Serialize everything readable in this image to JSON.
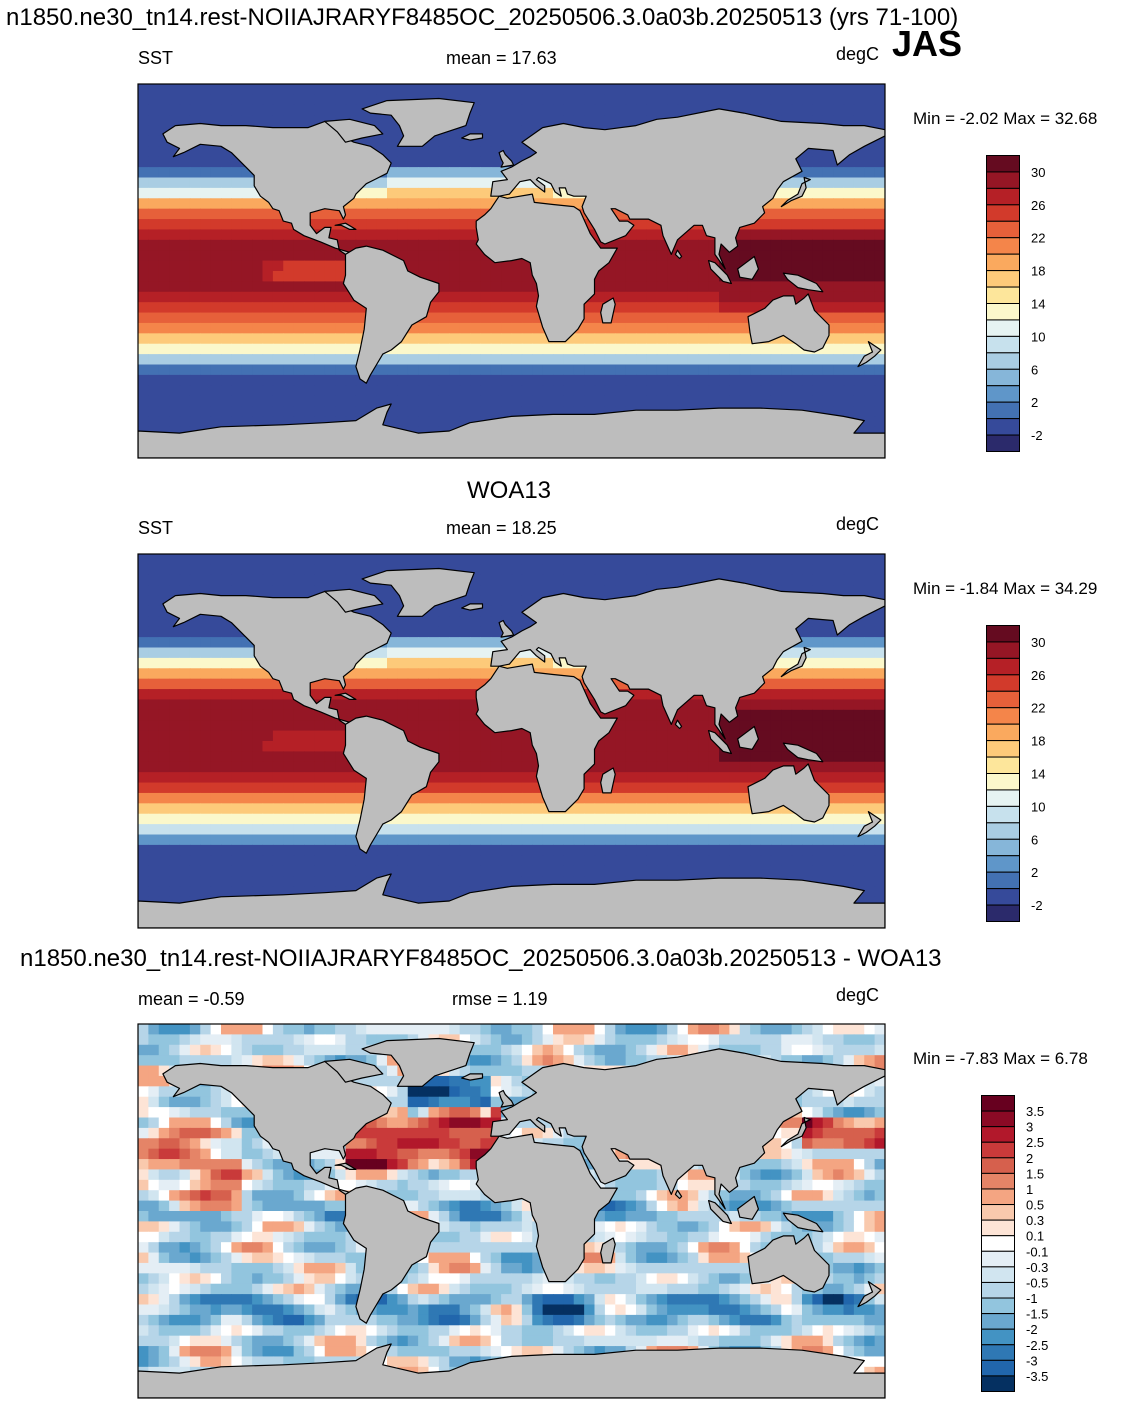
{
  "page": {
    "title": "n1850.ne30_tn14.rest-NOIIAJRARYF8485OC_20250506.3.0a03b.20250513 (yrs 71-100)",
    "season": "JAS"
  },
  "chart_data": [
    {
      "type": "heatmap",
      "title": "",
      "variable": "SST",
      "stat_text": "mean =  17.63",
      "mean": 17.63,
      "units": "degC",
      "minmax_text": "Min =  -2.02 Max =  32.68",
      "min": -2.02,
      "max": 32.68,
      "colorbar_labels": [
        "30",
        "26",
        "22",
        "18",
        "14",
        "10",
        "6",
        "2",
        "-2"
      ],
      "colorbar_levels": [
        -2,
        0,
        2,
        4,
        6,
        8,
        10,
        12,
        14,
        16,
        18,
        20,
        22,
        24,
        26,
        28,
        30
      ],
      "colorbar_colors": [
        "#2b2a6b",
        "#364a9a",
        "#4371b3",
        "#5f96c9",
        "#86b6d9",
        "#a9cde3",
        "#c7e1ed",
        "#e6f3f2",
        "#fbf8cb",
        "#fde69b",
        "#fdca7a",
        "#faa95e",
        "#f4854a",
        "#e6603a",
        "#d23a2b",
        "#b52026",
        "#951625",
        "#650b20"
      ],
      "map_colors": {
        "land": "#bdbdbd",
        "coast": "#000000"
      }
    },
    {
      "type": "heatmap",
      "title": "WOA13",
      "variable": "SST",
      "stat_text": "mean =  18.25",
      "mean": 18.25,
      "units": "degC",
      "minmax_text": "Min =  -1.84 Max =  34.29",
      "min": -1.84,
      "max": 34.29,
      "colorbar_labels": [
        "30",
        "26",
        "22",
        "18",
        "14",
        "10",
        "6",
        "2",
        "-2"
      ],
      "colorbar_levels": [
        -2,
        0,
        2,
        4,
        6,
        8,
        10,
        12,
        14,
        16,
        18,
        20,
        22,
        24,
        26,
        28,
        30
      ],
      "colorbar_colors": [
        "#2b2a6b",
        "#364a9a",
        "#4371b3",
        "#5f96c9",
        "#86b6d9",
        "#a9cde3",
        "#c7e1ed",
        "#e6f3f2",
        "#fbf8cb",
        "#fde69b",
        "#fdca7a",
        "#faa95e",
        "#f4854a",
        "#e6603a",
        "#d23a2b",
        "#b52026",
        "#951625",
        "#650b20"
      ],
      "map_colors": {
        "land": "#bdbdbd",
        "coast": "#000000"
      }
    },
    {
      "type": "heatmap",
      "title": "n1850.ne30_tn14.rest-NOIIAJRARYF8485OC_20250506.3.0a03b.20250513 - WOA13",
      "variable": "",
      "stat_text": "mean =  -0.59",
      "mean": -0.59,
      "stat2_text": "rmse =   1.19",
      "rmse": 1.19,
      "units": "degC",
      "minmax_text": "Min =  -7.83 Max =   6.78",
      "min": -7.83,
      "max": 6.78,
      "colorbar_labels": [
        "3.5",
        "3",
        "2.5",
        "2",
        "1.5",
        "1",
        "0.5",
        "0.3",
        "0.1",
        "-0.1",
        "-0.3",
        "-0.5",
        "-1",
        "-1.5",
        "-2",
        "-2.5",
        "-3",
        "-3.5"
      ],
      "colorbar_levels": [
        3.5,
        3,
        2.5,
        2,
        1.5,
        1,
        0.5,
        0.3,
        0.1,
        -0.1,
        -0.3,
        -0.5,
        -1,
        -1.5,
        -2,
        -2.5,
        -3,
        -3.5
      ],
      "colorbar_colors": [
        "#67001f",
        "#8b0a25",
        "#b2182b",
        "#c93a3a",
        "#d6604d",
        "#e58467",
        "#f4a582",
        "#f9c9ad",
        "#fde4d6",
        "#ffffff",
        "#e4eef5",
        "#d1e5f0",
        "#b6d5e8",
        "#92c5de",
        "#6aa8cf",
        "#4393c3",
        "#2f78b4",
        "#2166ac",
        "#053061"
      ],
      "map_colors": {
        "land": "#bdbdbd",
        "coast": "#000000"
      }
    }
  ]
}
